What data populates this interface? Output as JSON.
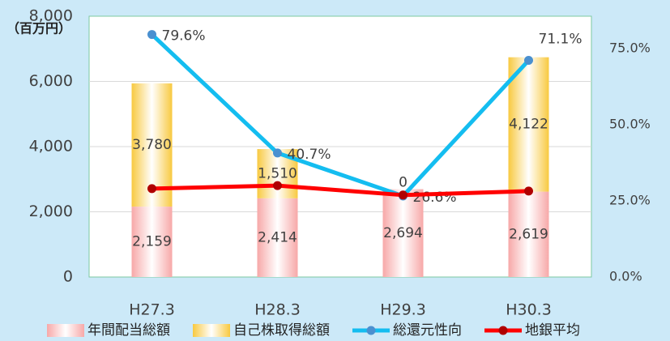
{
  "chart_data": {
    "type": "bar_line",
    "unit_label": "（百万円）",
    "categories": [
      "H27.3",
      "H28.3",
      "H29.3",
      "H30.3"
    ],
    "series": [
      {
        "name": "年間配当総額",
        "kind": "bar",
        "color": "#f7a8a8",
        "values": [
          2159,
          2414,
          2694,
          2619
        ],
        "value_labels": [
          "2,159",
          "2,414",
          "2,694",
          "2,619"
        ]
      },
      {
        "name": "自己株取得総額",
        "kind": "bar",
        "color": "#f8c940",
        "values": [
          3780,
          1510,
          0,
          4122
        ],
        "value_labels": [
          "3,780",
          "1,510",
          "0",
          "4,122"
        ]
      },
      {
        "name": "総還元性向",
        "kind": "line",
        "axis": "y2",
        "color": "#14bdf0",
        "marker_color": "#4a90d0",
        "values": [
          79.6,
          40.7,
          26.6,
          71.1
        ],
        "value_labels": [
          "79.6%",
          "40.7%",
          "26.6%",
          "71.1%"
        ]
      },
      {
        "name": "地銀平均",
        "kind": "line",
        "axis": "y2",
        "color": "#ff0000",
        "marker_color": "#b00000",
        "values": [
          29.0,
          30.0,
          26.9,
          28.2
        ]
      }
    ],
    "ylim": [
      0,
      8000
    ],
    "yticks": [
      0,
      {
        "value": 2000,
        "label": "2,000"
      },
      {
        "value": 4000,
        "label": "4,000"
      },
      {
        "value": 6000,
        "label": "6,000"
      },
      {
        "value": 8000,
        "label": "8,000"
      }
    ],
    "y2lim": [
      0,
      85.6
    ],
    "y2ticks": [
      {
        "value": 0,
        "label": "0.0%"
      },
      {
        "value": 25,
        "label": "25.0%"
      },
      {
        "value": 50,
        "label": "50.0%"
      },
      {
        "value": 75,
        "label": "75.0%"
      }
    ],
    "grid": true,
    "legend": "bottom"
  }
}
